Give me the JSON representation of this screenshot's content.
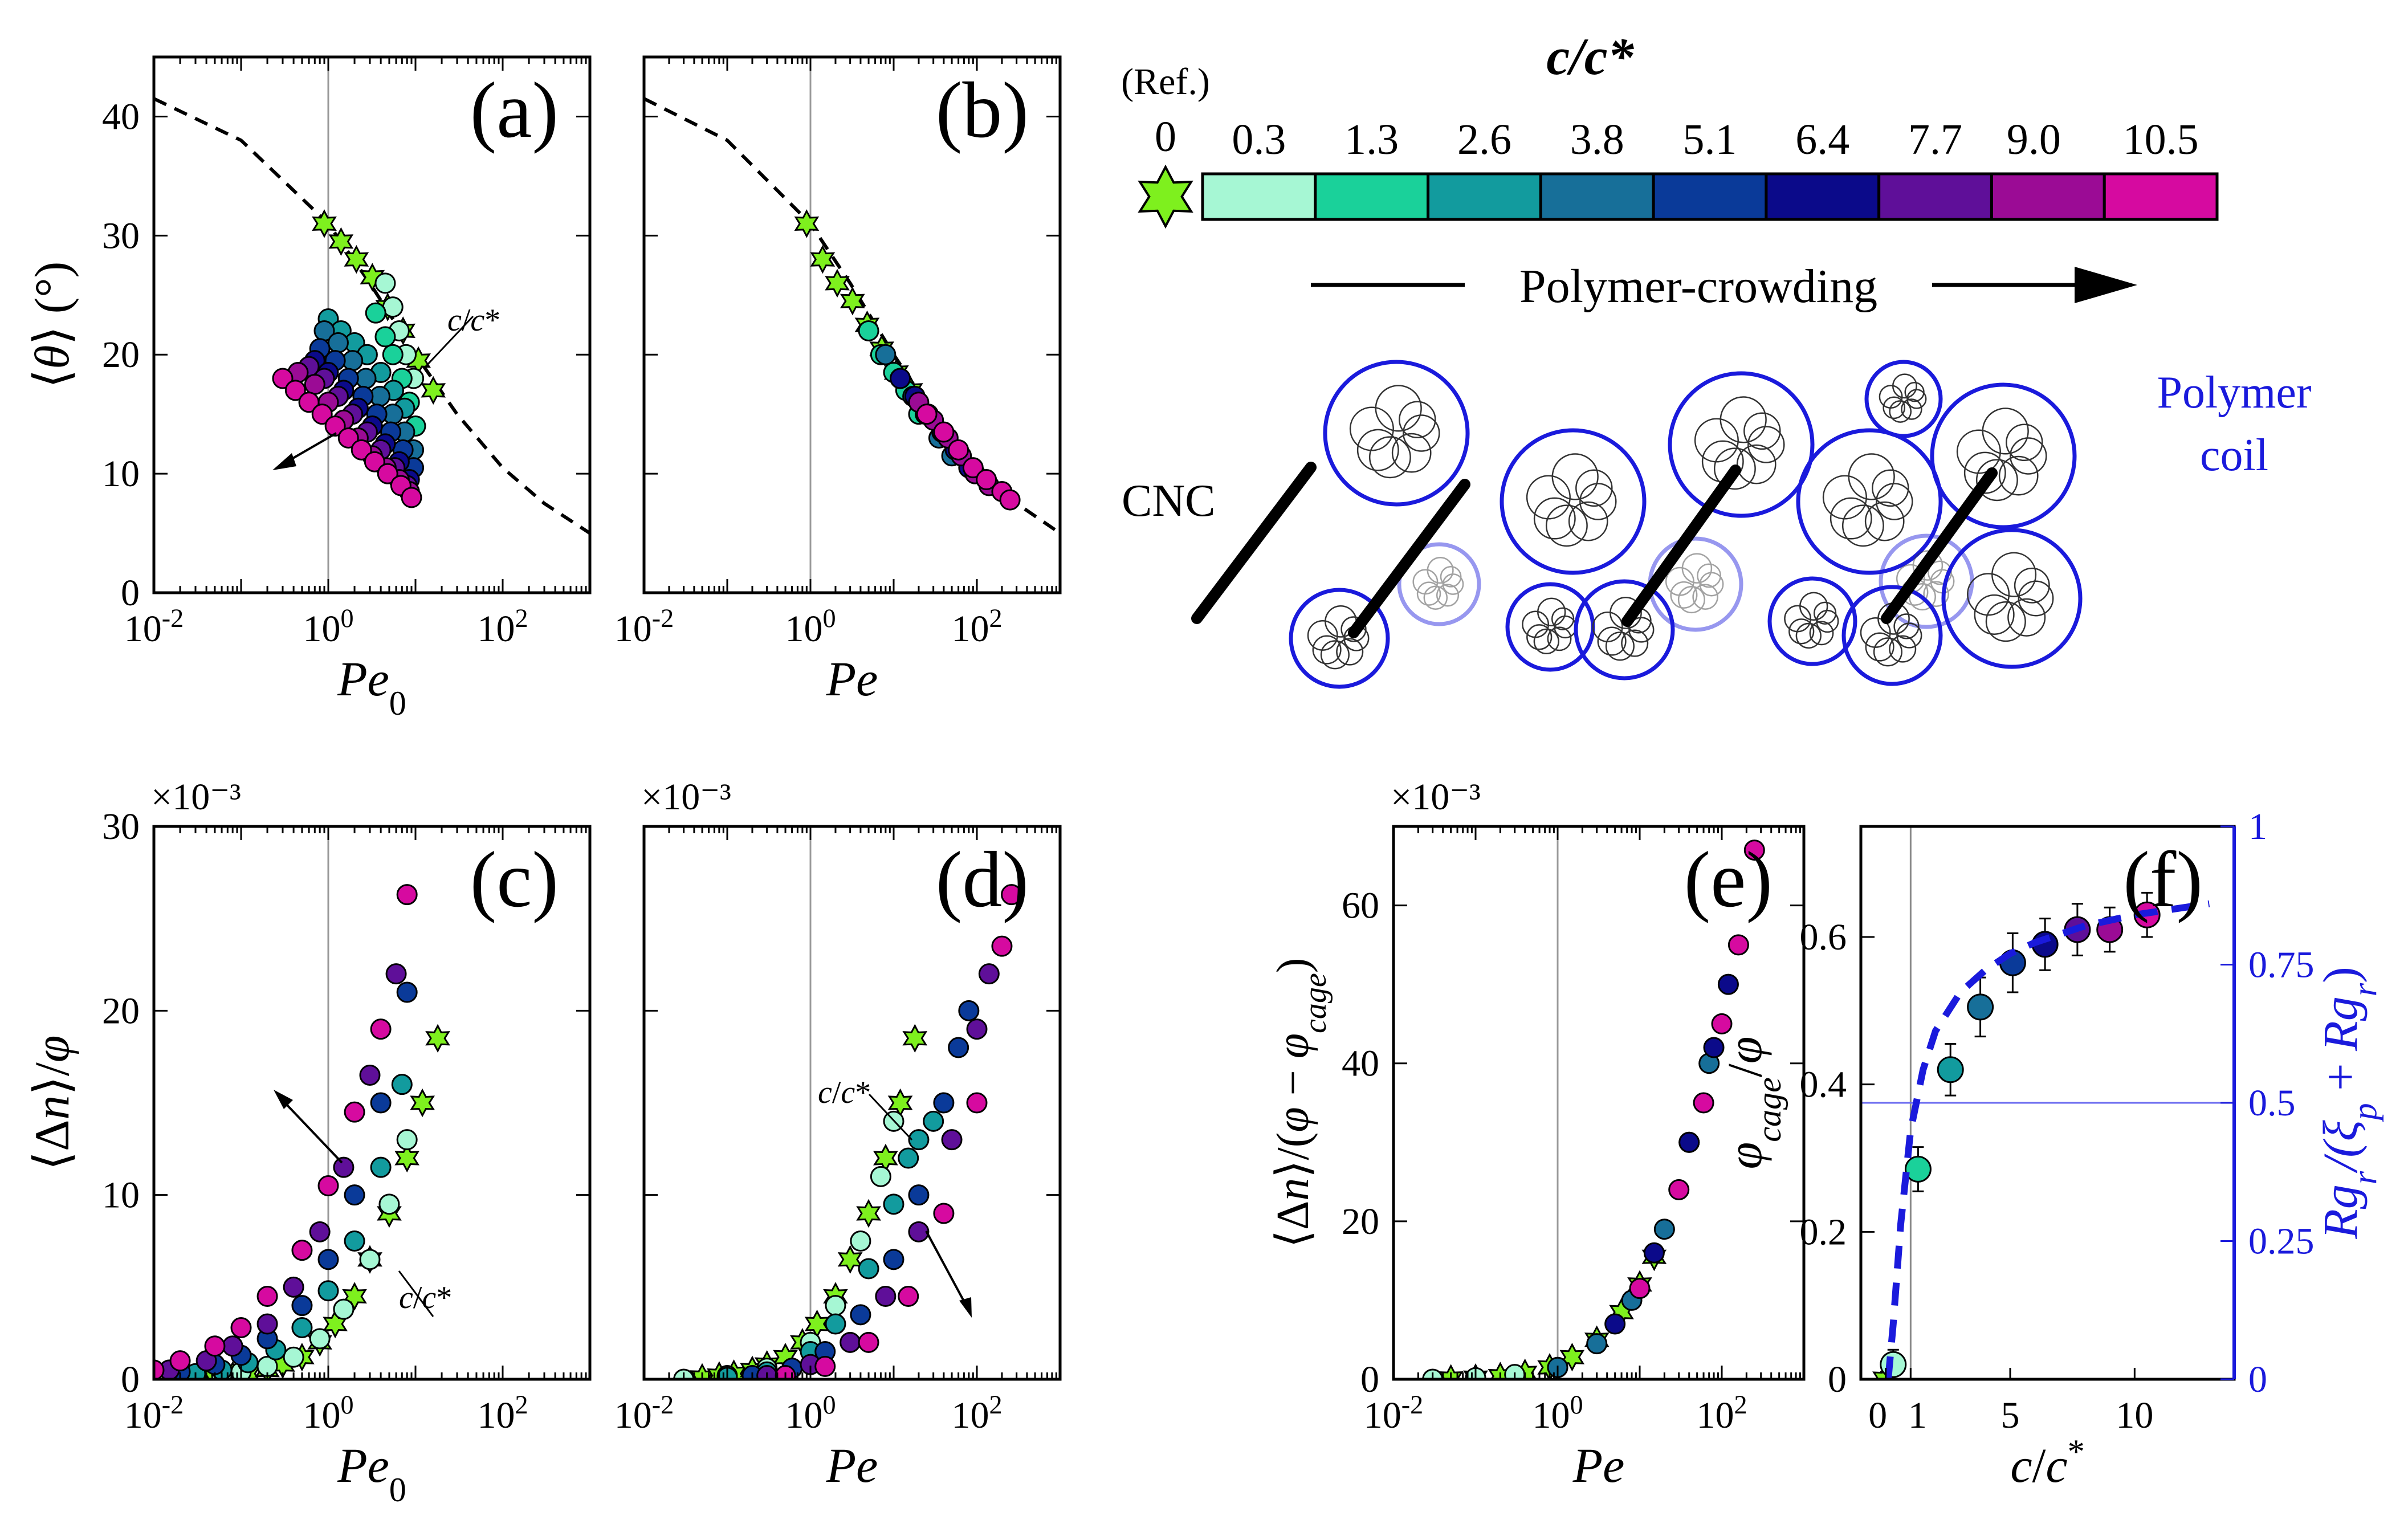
{
  "colorbar": {
    "title": "c/c*",
    "ref_label": "(Ref.)",
    "ref_value": "0",
    "values": [
      "0.3",
      "1.3",
      "2.6",
      "3.8",
      "5.1",
      "6.4",
      "7.7",
      "9.0",
      "10.5"
    ],
    "colors": [
      "#a6f7d4",
      "#1ad19a",
      "#129b9e",
      "#176f99",
      "#0a3a99",
      "#0b0a8a",
      "#5f0f99",
      "#9b0b95",
      "#d60aa0"
    ],
    "ref_color": "#7ef01e"
  },
  "schematic": {
    "arrow_label": "Polymer-crowding",
    "cnc_label": "CNC",
    "coil_label_1": "Polymer",
    "coil_label_2": "coil"
  },
  "colors": {
    "blue_axis": "#1a1adc",
    "ref_marker": "#7ef01e"
  },
  "chart_data": [
    {
      "id": "a",
      "type": "scatter",
      "panel_label": "(a)",
      "xlabel": "Pe0",
      "ylabel": "<θ> (°)",
      "xscale": "log",
      "xlim": [
        0.01,
        1000
      ],
      "ylim": [
        0,
        45
      ],
      "yticks": [
        0,
        10,
        20,
        30,
        40
      ],
      "annotation": "c/c*",
      "guide": {
        "type": "dashed",
        "x": [
          0.01,
          0.1,
          1,
          3,
          10,
          30,
          100,
          300,
          1000
        ],
        "y": [
          41.5,
          38,
          31,
          26,
          20,
          15,
          10.5,
          7.5,
          5
        ]
      },
      "series": [
        {
          "name": "0",
          "x": [
            0.9,
            1.4,
            2.1,
            3.2,
            4.8,
            7.2,
            10.8,
            16
          ],
          "y": [
            31,
            29.5,
            28,
            26.5,
            24,
            22,
            19.5,
            17
          ]
        },
        {
          "name": "0.3",
          "x": [
            4.5,
            5.5,
            6.5,
            7.8,
            9.5
          ],
          "y": [
            26,
            24,
            22,
            20,
            18
          ]
        },
        {
          "name": "1.3",
          "x": [
            3.5,
            4.5,
            5.5,
            7,
            8.5,
            10
          ],
          "y": [
            23.5,
            21.5,
            20,
            18,
            16,
            14
          ]
        },
        {
          "name": "2.6",
          "x": [
            1,
            1.4,
            2,
            2.8,
            4,
            5.6,
            7.5
          ],
          "y": [
            23,
            22,
            21,
            20,
            18.5,
            17,
            15.5
          ]
        },
        {
          "name": "3.8",
          "x": [
            0.9,
            1.3,
            1.9,
            2.7,
            3.9,
            5.5,
            7.5,
            9.5
          ],
          "y": [
            22,
            21,
            19.5,
            18,
            16.5,
            15,
            13.5,
            12
          ]
        },
        {
          "name": "5.1",
          "x": [
            0.8,
            1.2,
            1.7,
            2.5,
            3.6,
            5.2,
            7.2,
            9.5
          ],
          "y": [
            20.5,
            19.5,
            18,
            16.5,
            15,
            13.5,
            12,
            10.5
          ]
        },
        {
          "name": "6.4",
          "x": [
            0.7,
            1,
            1.5,
            2.2,
            3.2,
            4.5,
            6.5,
            8.5
          ],
          "y": [
            19.5,
            18.5,
            17,
            15.5,
            14,
            12.5,
            11,
            9.5
          ]
        },
        {
          "name": "7.7",
          "x": [
            0.6,
            0.9,
            1.3,
            1.9,
            2.8,
            4,
            5.8,
            8
          ],
          "y": [
            19,
            18,
            16.5,
            15,
            13.5,
            12,
            10.5,
            9
          ]
        },
        {
          "name": "9.0",
          "x": [
            0.45,
            0.7,
            1,
            1.5,
            2.2,
            3.2,
            4.6,
            6.5,
            8.5
          ],
          "y": [
            18.5,
            17.5,
            16,
            14.5,
            13,
            11.5,
            10.5,
            9.5,
            8.5
          ]
        },
        {
          "name": "10.5",
          "x": [
            0.3,
            0.42,
            0.6,
            0.85,
            1.2,
            1.7,
            2.4,
            3.4,
            4.8,
            6.8,
            9
          ],
          "y": [
            18,
            17,
            16,
            15,
            14,
            13,
            12,
            11,
            10,
            9,
            8
          ]
        }
      ]
    },
    {
      "id": "b",
      "type": "scatter",
      "panel_label": "(b)",
      "xlabel": "Pe",
      "ylabel": "",
      "xscale": "log",
      "xlim": [
        0.01,
        1000
      ],
      "ylim": [
        0,
        45
      ],
      "yticks": [
        0,
        10,
        20,
        30,
        40
      ],
      "guide": {
        "type": "dashed",
        "x": [
          0.01,
          0.1,
          1,
          3,
          10,
          30,
          100,
          300,
          1000
        ],
        "y": [
          41.5,
          38,
          31,
          26,
          20,
          15,
          10.5,
          7.5,
          5
        ]
      },
      "series": [
        {
          "name": "0",
          "x": [
            0.9,
            1.4,
            2.1,
            3.2,
            4.8,
            7.2,
            10.8,
            16
          ],
          "y": [
            31,
            28,
            26,
            24.5,
            22.5,
            20.5,
            18.5,
            17
          ]
        },
        {
          "name": "1.3",
          "x": [
            5,
            7,
            10,
            14,
            20
          ],
          "y": [
            22,
            20,
            18.5,
            17,
            15
          ]
        },
        {
          "name": "3.8",
          "x": [
            8,
            12,
            17,
            24,
            35,
            50
          ],
          "y": [
            20,
            18,
            16.5,
            15,
            13,
            11.5
          ]
        },
        {
          "name": "6.4",
          "x": [
            12,
            18,
            26,
            38,
            55,
            80
          ],
          "y": [
            18,
            16.5,
            15,
            13.5,
            12,
            10.5
          ]
        },
        {
          "name": "9.0",
          "x": [
            20,
            30,
            45,
            65,
            95,
            140
          ],
          "y": [
            16,
            14.5,
            13,
            11.5,
            10,
            9
          ]
        },
        {
          "name": "10.5",
          "x": [
            25,
            40,
            60,
            90,
            130,
            200,
            250
          ],
          "y": [
            15,
            13.5,
            12,
            10.5,
            9.5,
            8.5,
            7.8
          ]
        }
      ]
    },
    {
      "id": "c",
      "type": "scatter",
      "panel_label": "(c)",
      "xlabel": "Pe0",
      "ylabel": "<Δn>/φ",
      "xscale": "log",
      "xlim": [
        0.01,
        1000
      ],
      "ylim": [
        0,
        30
      ],
      "y_multiplier": "×10⁻³",
      "yticks": [
        0,
        10,
        20,
        30
      ],
      "annotation": "c/c*",
      "series": [
        {
          "name": "0",
          "x": [
            0.05,
            0.08,
            0.12,
            0.2,
            0.3,
            0.5,
            0.8,
            1.2,
            2,
            3,
            5,
            8,
            12,
            18
          ],
          "y": [
            0.1,
            0.2,
            0.3,
            0.5,
            0.8,
            1.2,
            2,
            3,
            4.5,
            6.5,
            9,
            12,
            15,
            18.5
          ]
        },
        {
          "name": "0.3",
          "x": [
            0.03,
            0.06,
            0.1,
            0.2,
            0.4,
            0.8,
            1.5,
            3,
            5,
            8
          ],
          "y": [
            0.1,
            0.2,
            0.4,
            0.7,
            1.2,
            2.2,
            3.8,
            6.5,
            9.5,
            13
          ]
        },
        {
          "name": "2.6",
          "x": [
            0.03,
            0.06,
            0.12,
            0.25,
            0.5,
            1,
            2,
            4,
            7
          ],
          "y": [
            0.3,
            0.5,
            0.9,
            1.6,
            2.8,
            4.8,
            7.5,
            11.5,
            16
          ]
        },
        {
          "name": "5.1",
          "x": [
            0.02,
            0.05,
            0.1,
            0.2,
            0.5,
            1,
            2,
            4,
            8
          ],
          "y": [
            0.4,
            0.8,
            1.3,
            2.2,
            4,
            6.5,
            10,
            15,
            21
          ]
        },
        {
          "name": "7.7",
          "x": [
            0.015,
            0.04,
            0.08,
            0.2,
            0.4,
            0.8,
            1.5,
            3,
            6
          ],
          "y": [
            0.5,
            1,
            1.8,
            3,
            5,
            8,
            11.5,
            16.5,
            22
          ]
        },
        {
          "name": "10.5",
          "x": [
            0.01,
            0.02,
            0.05,
            0.1,
            0.2,
            0.5,
            1,
            2,
            4,
            8
          ],
          "y": [
            0.5,
            1,
            1.8,
            2.8,
            4.5,
            7,
            10.5,
            14.5,
            19,
            26.3
          ]
        }
      ]
    },
    {
      "id": "d",
      "type": "scatter",
      "panel_label": "(d)",
      "xlabel": "Pe",
      "ylabel": "",
      "xscale": "log",
      "xlim": [
        0.01,
        1000
      ],
      "ylim": [
        0,
        30
      ],
      "y_multiplier": "×10⁻³",
      "yticks": [
        0,
        10,
        20,
        30
      ],
      "annotation": "c/c*",
      "series": [
        {
          "name": "0",
          "x": [
            0.05,
            0.08,
            0.12,
            0.2,
            0.3,
            0.5,
            0.8,
            1.2,
            2,
            3,
            5,
            8,
            12,
            18
          ],
          "y": [
            0.1,
            0.2,
            0.3,
            0.5,
            0.8,
            1.2,
            2,
            3,
            4.5,
            6.5,
            9,
            12,
            15,
            18.5
          ]
        },
        {
          "name": "0.3",
          "x": [
            0.03,
            0.1,
            0.3,
            1,
            2,
            4,
            7,
            10
          ],
          "y": [
            0,
            0.2,
            0.6,
            2,
            4,
            7.5,
            11,
            14
          ]
        },
        {
          "name": "2.6",
          "x": [
            0.1,
            0.3,
            1,
            2,
            5,
            10,
            15,
            20,
            30
          ],
          "y": [
            0.1,
            0.4,
            1.5,
            3,
            6,
            9.5,
            12,
            13,
            14
          ]
        },
        {
          "name": "5.1",
          "x": [
            0.2,
            0.6,
            1.5,
            4,
            10,
            20,
            40,
            60,
            80
          ],
          "y": [
            0.2,
            0.6,
            1.5,
            3.5,
            6.5,
            10,
            15,
            18,
            20
          ]
        },
        {
          "name": "7.7",
          "x": [
            0.3,
            1,
            3,
            8,
            20,
            50,
            100,
            140
          ],
          "y": [
            0.2,
            0.8,
            2,
            4.5,
            8,
            13,
            19,
            22
          ]
        },
        {
          "name": "10.5",
          "x": [
            0.5,
            1.5,
            5,
            15,
            40,
            100,
            200,
            260
          ],
          "y": [
            0.2,
            0.7,
            2,
            4.5,
            9,
            15,
            23.5,
            26.3
          ]
        }
      ]
    },
    {
      "id": "e",
      "type": "scatter",
      "panel_label": "(e)",
      "xlabel": "Pe",
      "ylabel": "<Δn>/(φ − φcage)",
      "xscale": "log",
      "xlim": [
        0.01,
        1000
      ],
      "ylim": [
        0,
        70
      ],
      "y_multiplier": "×10⁻³",
      "yticks": [
        0,
        20,
        40,
        60
      ],
      "series": [
        {
          "name": "0",
          "x": [
            0.05,
            0.1,
            0.2,
            0.4,
            0.8,
            1.5,
            3,
            6,
            10,
            15
          ],
          "y": [
            0.1,
            0.2,
            0.4,
            0.8,
            1.5,
            2.8,
            5,
            8.5,
            12,
            15.5
          ]
        },
        {
          "name": "0.3",
          "x": [
            0.03,
            0.1,
            0.3,
            1
          ],
          "y": [
            0,
            0.2,
            0.6,
            1.5
          ]
        },
        {
          "name": "3.8",
          "x": [
            1,
            3,
            8,
            20,
            40,
            70
          ],
          "y": [
            1.5,
            4.5,
            10,
            19,
            30,
            40
          ]
        },
        {
          "name": "6.4",
          "x": [
            5,
            15,
            40,
            80,
            120
          ],
          "y": [
            7,
            16,
            30,
            42,
            50
          ]
        },
        {
          "name": "10.5",
          "x": [
            10,
            30,
            60,
            100,
            160,
            250
          ],
          "y": [
            11.5,
            24,
            35,
            45,
            55,
            67
          ]
        }
      ]
    },
    {
      "id": "f",
      "type": "scatter",
      "panel_label": "(f)",
      "xlabel": "c/c*",
      "ylabel": "φcage/φ",
      "y2label": "Rgr/(ξp + Rgr)",
      "xlim": [
        -1,
        14
      ],
      "ylim": [
        0,
        0.75
      ],
      "y2lim": [
        0,
        1
      ],
      "xticks": [
        0,
        1,
        5,
        10
      ],
      "yticks": [
        0,
        0.2,
        0.4,
        0.6
      ],
      "y2ticks": [
        0,
        0.25,
        0.5,
        0.75,
        1
      ],
      "vline_x": 1,
      "hline_y2": 0.5,
      "series": [
        {
          "name": "φcage/φ",
          "x": [
            0,
            0.3,
            1.3,
            2.6,
            3.8,
            5.1,
            6.4,
            7.7,
            9.0,
            10.5
          ],
          "y": [
            0,
            0.02,
            0.285,
            0.42,
            0.505,
            0.565,
            0.59,
            0.61,
            0.61,
            0.63
          ],
          "yerr": [
            0.01,
            0.02,
            0.03,
            0.035,
            0.04,
            0.04,
            0.035,
            0.035,
            0.03,
            0.03
          ]
        },
        {
          "name": "Rgr/(ξp + Rgr)",
          "axis": "y2",
          "style": "dashed",
          "x": [
            0.1,
            0.3,
            0.6,
            1,
            1.5,
            2,
            3,
            4,
            5,
            6,
            8,
            10,
            13
          ],
          "y": [
            0,
            0.1,
            0.28,
            0.45,
            0.56,
            0.63,
            0.7,
            0.74,
            0.77,
            0.79,
            0.82,
            0.84,
            0.86
          ]
        }
      ]
    }
  ]
}
